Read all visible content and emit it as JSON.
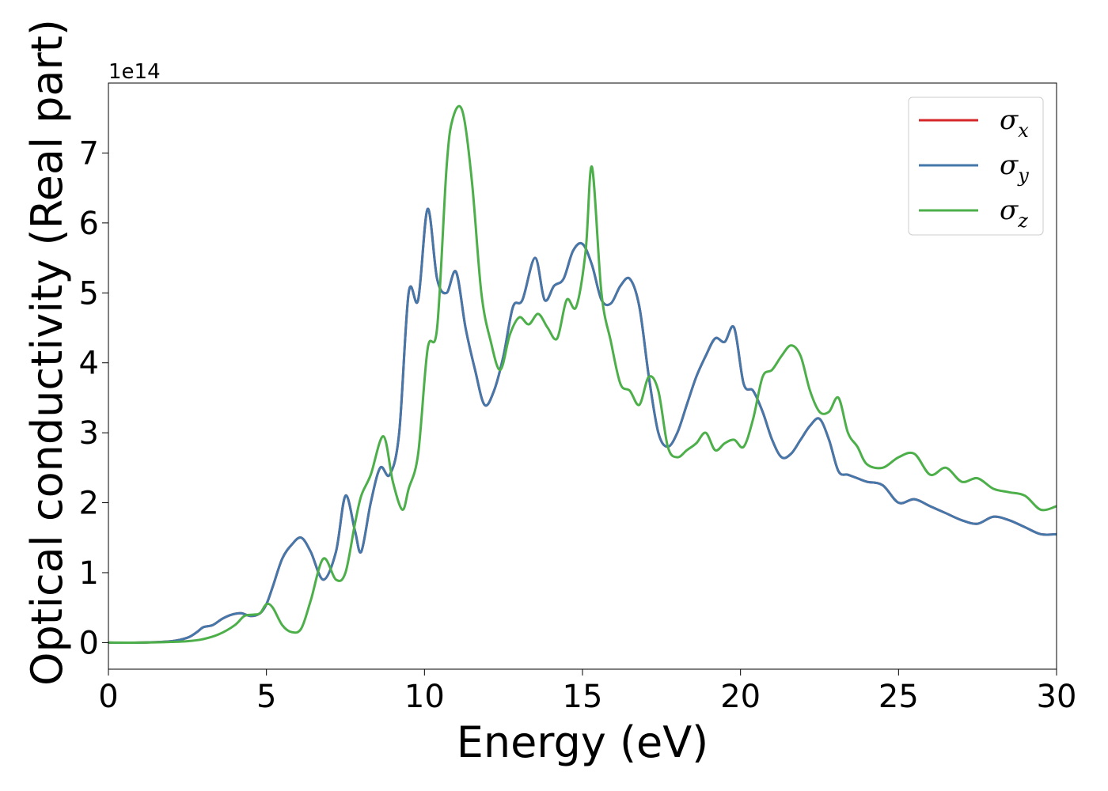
{
  "chart_data": {
    "type": "line",
    "title": "",
    "xlabel": "Energy (eV)",
    "ylabel": "Optical conductivity (Real part)",
    "y_offset_label": "1e14",
    "xlim": [
      0,
      30
    ],
    "ylim": [
      -0.38,
      8.0
    ],
    "xticks": [
      0,
      5,
      10,
      15,
      20,
      25,
      30
    ],
    "xtick_labels": [
      "0",
      "5",
      "10",
      "15",
      "20",
      "25",
      "30"
    ],
    "yticks": [
      0,
      1,
      2,
      3,
      4,
      5,
      6,
      7
    ],
    "ytick_labels": [
      "0",
      "1",
      "2",
      "3",
      "4",
      "5",
      "6",
      "7"
    ],
    "grid": false,
    "legend_position": "top-right",
    "legend_labels": [
      {
        "symbol": "σ",
        "sub": "x"
      },
      {
        "symbol": "σ",
        "sub": "y"
      },
      {
        "symbol": "σ",
        "sub": "z"
      }
    ],
    "series": [
      {
        "color": "#d62728",
        "x": [
          0,
          1,
          2,
          2.5,
          2.8,
          3.0,
          3.3,
          3.6,
          3.9,
          4.2,
          4.5,
          4.8,
          5.0,
          5.2,
          5.5,
          5.8,
          6.1,
          6.4,
          6.8,
          7.2,
          7.5,
          7.8,
          8.0,
          8.3,
          8.6,
          8.9,
          9.2,
          9.5,
          9.8,
          10.1,
          10.4,
          10.7,
          11.0,
          11.3,
          11.6,
          11.9,
          12.2,
          12.5,
          12.8,
          13.1,
          13.5,
          13.8,
          14.1,
          14.4,
          14.7,
          15.0,
          15.3,
          15.6,
          15.9,
          16.2,
          16.5,
          16.8,
          17.1,
          17.4,
          17.7,
          18.0,
          18.3,
          18.6,
          18.9,
          19.2,
          19.5,
          19.8,
          20.1,
          20.4,
          20.7,
          21.0,
          21.3,
          21.6,
          21.9,
          22.2,
          22.5,
          22.8,
          23.1,
          23.4,
          23.7,
          24.0,
          24.5,
          25.0,
          25.5,
          26.0,
          26.5,
          27.0,
          27.5,
          28.0,
          28.5,
          29.0,
          29.5,
          30.0
        ],
        "y": [
          0,
          0,
          0.02,
          0.07,
          0.15,
          0.22,
          0.25,
          0.34,
          0.4,
          0.42,
          0.38,
          0.42,
          0.55,
          0.8,
          1.2,
          1.4,
          1.5,
          1.3,
          0.9,
          1.3,
          2.1,
          1.6,
          1.3,
          2.0,
          2.5,
          2.4,
          3.0,
          5.0,
          4.9,
          6.2,
          5.2,
          5.0,
          5.3,
          4.5,
          3.9,
          3.4,
          3.6,
          4.1,
          4.8,
          4.9,
          5.5,
          4.9,
          5.1,
          5.2,
          5.6,
          5.7,
          5.4,
          4.9,
          4.85,
          5.1,
          5.2,
          4.8,
          3.8,
          3.0,
          2.8,
          3.0,
          3.4,
          3.8,
          4.1,
          4.35,
          4.3,
          4.5,
          3.7,
          3.6,
          3.3,
          2.9,
          2.65,
          2.7,
          2.9,
          3.1,
          3.2,
          2.9,
          2.45,
          2.4,
          2.35,
          2.3,
          2.25,
          2.0,
          2.05,
          1.95,
          1.85,
          1.75,
          1.7,
          1.8,
          1.75,
          1.65,
          1.55,
          1.55
        ]
      },
      {
        "color": "#4477aa",
        "x": [
          0,
          1,
          2,
          2.5,
          2.8,
          3.0,
          3.3,
          3.6,
          3.9,
          4.2,
          4.5,
          4.8,
          5.0,
          5.2,
          5.5,
          5.8,
          6.1,
          6.4,
          6.8,
          7.2,
          7.5,
          7.8,
          8.0,
          8.3,
          8.6,
          8.9,
          9.2,
          9.5,
          9.8,
          10.1,
          10.4,
          10.7,
          11.0,
          11.3,
          11.6,
          11.9,
          12.2,
          12.5,
          12.8,
          13.1,
          13.5,
          13.8,
          14.1,
          14.4,
          14.7,
          15.0,
          15.3,
          15.6,
          15.9,
          16.2,
          16.5,
          16.8,
          17.1,
          17.4,
          17.7,
          18.0,
          18.3,
          18.6,
          18.9,
          19.2,
          19.5,
          19.8,
          20.1,
          20.4,
          20.7,
          21.0,
          21.3,
          21.6,
          21.9,
          22.2,
          22.5,
          22.8,
          23.1,
          23.4,
          23.7,
          24.0,
          24.5,
          25.0,
          25.5,
          26.0,
          26.5,
          27.0,
          27.5,
          28.0,
          28.5,
          29.0,
          29.5,
          30.0
        ],
        "y": [
          0,
          0,
          0.02,
          0.07,
          0.15,
          0.22,
          0.25,
          0.34,
          0.4,
          0.42,
          0.38,
          0.42,
          0.55,
          0.8,
          1.2,
          1.4,
          1.5,
          1.3,
          0.9,
          1.3,
          2.1,
          1.6,
          1.3,
          2.0,
          2.5,
          2.4,
          3.0,
          5.0,
          4.9,
          6.2,
          5.2,
          5.0,
          5.3,
          4.5,
          3.9,
          3.4,
          3.6,
          4.1,
          4.8,
          4.9,
          5.5,
          4.9,
          5.1,
          5.2,
          5.6,
          5.7,
          5.4,
          4.9,
          4.85,
          5.1,
          5.2,
          4.8,
          3.8,
          3.0,
          2.8,
          3.0,
          3.4,
          3.8,
          4.1,
          4.35,
          4.3,
          4.5,
          3.7,
          3.6,
          3.3,
          2.9,
          2.65,
          2.7,
          2.9,
          3.1,
          3.2,
          2.9,
          2.45,
          2.4,
          2.35,
          2.3,
          2.25,
          2.0,
          2.05,
          1.95,
          1.85,
          1.75,
          1.7,
          1.8,
          1.75,
          1.65,
          1.55,
          1.55
        ]
      },
      {
        "color": "#4daf4a",
        "x": [
          0,
          1,
          2,
          2.5,
          3.0,
          3.5,
          4.0,
          4.3,
          4.6,
          4.8,
          5.0,
          5.2,
          5.5,
          5.8,
          6.1,
          6.4,
          6.8,
          7.2,
          7.5,
          7.8,
          8.0,
          8.3,
          8.7,
          9.0,
          9.3,
          9.5,
          9.8,
          10.1,
          10.4,
          10.7,
          10.9,
          11.2,
          11.5,
          11.8,
          12.1,
          12.4,
          12.7,
          13.0,
          13.3,
          13.6,
          13.9,
          14.2,
          14.5,
          14.8,
          15.1,
          15.3,
          15.6,
          15.9,
          16.2,
          16.5,
          16.8,
          17.1,
          17.4,
          17.7,
          18.0,
          18.3,
          18.6,
          18.9,
          19.2,
          19.5,
          19.8,
          20.1,
          20.4,
          20.7,
          21.0,
          21.3,
          21.6,
          21.9,
          22.2,
          22.5,
          22.8,
          23.1,
          23.4,
          23.7,
          24.0,
          24.5,
          25.0,
          25.5,
          26.0,
          26.5,
          27.0,
          27.5,
          28.0,
          28.5,
          29.0,
          29.5,
          30.0
        ],
        "y": [
          0,
          0,
          0.01,
          0.02,
          0.05,
          0.12,
          0.25,
          0.38,
          0.4,
          0.42,
          0.55,
          0.5,
          0.25,
          0.15,
          0.2,
          0.6,
          1.2,
          0.9,
          1.0,
          1.7,
          2.1,
          2.4,
          2.95,
          2.3,
          1.9,
          2.2,
          2.7,
          4.2,
          4.5,
          6.8,
          7.5,
          7.6,
          6.6,
          5.0,
          4.3,
          3.9,
          4.4,
          4.65,
          4.55,
          4.7,
          4.5,
          4.35,
          4.9,
          4.8,
          5.6,
          6.8,
          5.0,
          4.3,
          3.7,
          3.6,
          3.4,
          3.8,
          3.6,
          2.8,
          2.65,
          2.75,
          2.85,
          3.0,
          2.75,
          2.85,
          2.9,
          2.8,
          3.2,
          3.8,
          3.9,
          4.1,
          4.25,
          4.1,
          3.6,
          3.3,
          3.3,
          3.5,
          3.0,
          2.8,
          2.55,
          2.5,
          2.65,
          2.7,
          2.4,
          2.5,
          2.3,
          2.35,
          2.2,
          2.15,
          2.1,
          1.9,
          1.95
        ]
      }
    ]
  }
}
